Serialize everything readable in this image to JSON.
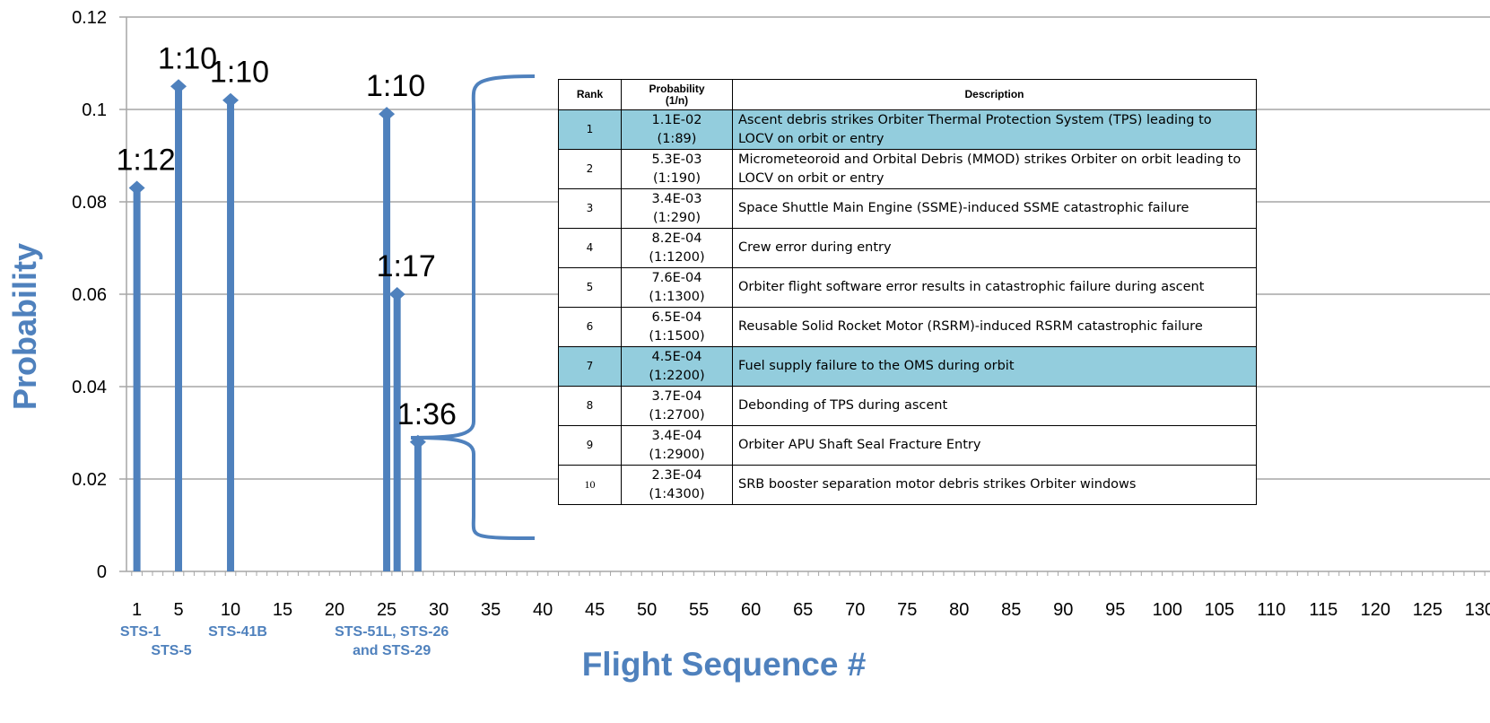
{
  "colors": {
    "bar": "#4f81bd",
    "highlight": "#93cddd",
    "grid": "#a6a6a6"
  },
  "chart_data": {
    "type": "bar",
    "ylabel": "Probability",
    "xlabel": "Flight Sequence #",
    "ylim": [
      0,
      0.12
    ],
    "yticks": [
      "0",
      "0.02",
      "0.04",
      "0.06",
      "0.08",
      "0.1",
      "0.12"
    ],
    "xlim": [
      0,
      131
    ],
    "xticks": [
      "1",
      "5",
      "10",
      "15",
      "20",
      "25",
      "30",
      "35",
      "40",
      "45",
      "50",
      "55",
      "60",
      "65",
      "70",
      "75",
      "80",
      "85",
      "90",
      "95",
      "100",
      "105",
      "110",
      "115",
      "120",
      "125",
      "130"
    ],
    "grid": true,
    "points": [
      {
        "x": 1,
        "y": 0.083,
        "label": "1:12"
      },
      {
        "x": 5,
        "y": 0.105,
        "label": "1:10"
      },
      {
        "x": 10,
        "y": 0.102,
        "label": "1:10"
      },
      {
        "x": 25,
        "y": 0.099,
        "label": "1:10"
      },
      {
        "x": 26,
        "y": 0.06,
        "label": "1:17"
      },
      {
        "x": 28,
        "y": 0.028,
        "label": "1:36"
      }
    ],
    "flight_labels": [
      {
        "x": 1,
        "text": "STS-1",
        "row": 1
      },
      {
        "x": 5,
        "text": "STS-5",
        "row": 2
      },
      {
        "x": 10,
        "text": "STS-41B",
        "row": 1
      },
      {
        "x": 26,
        "text": "STS-51L, STS-26",
        "row": 1
      },
      {
        "x": 26,
        "text": "and STS-29",
        "row": 2
      }
    ]
  },
  "table": {
    "headers": {
      "rank": "Rank",
      "prob_line1": "Probability",
      "prob_line2": "(1/n)",
      "description": "Description"
    },
    "rows": [
      {
        "rank": "1",
        "prob": "1.1E-02",
        "odds": "(1:89)",
        "description": "Ascent debris strikes Orbiter Thermal Protection System (TPS) leading to LOCV on orbit or entry",
        "highlight": true
      },
      {
        "rank": "2",
        "prob": "5.3E-03",
        "odds": "(1:190)",
        "description": "Micrometeoroid and Orbital Debris (MMOD) strikes Orbiter on orbit leading to LOCV on orbit or entry",
        "highlight": false
      },
      {
        "rank": "3",
        "prob": "3.4E-03",
        "odds": "(1:290)",
        "description": "Space Shuttle Main Engine (SSME)-induced SSME catastrophic failure",
        "highlight": false
      },
      {
        "rank": "4",
        "prob": "8.2E-04",
        "odds": "(1:1200)",
        "description": "Crew error during entry",
        "highlight": false
      },
      {
        "rank": "5",
        "prob": "7.6E-04",
        "odds": "(1:1300)",
        "description": "Orbiter flight software error results in catastrophic failure during ascent",
        "highlight": false
      },
      {
        "rank": "6",
        "prob": "6.5E-04",
        "odds": "(1:1500)",
        "description": "Reusable Solid Rocket Motor (RSRM)-induced  RSRM catastrophic failure",
        "highlight": false
      },
      {
        "rank": "7",
        "prob": "4.5E-04",
        "odds": "(1:2200)",
        "description": "Fuel supply failure to the OMS during orbit",
        "highlight": true
      },
      {
        "rank": "8",
        "prob": "3.7E-04",
        "odds": "(1:2700)",
        "description": "Debonding of TPS during ascent",
        "highlight": false
      },
      {
        "rank": "9",
        "prob": "3.4E-04",
        "odds": "(1:2900)",
        "description": "Orbiter APU Shaft Seal Fracture Entry",
        "highlight": false
      },
      {
        "rank": "10",
        "prob": "2.3E-04",
        "odds": "(1:4300)",
        "description": "SRB booster separation motor debris strikes Orbiter windows",
        "highlight": false
      }
    ]
  }
}
